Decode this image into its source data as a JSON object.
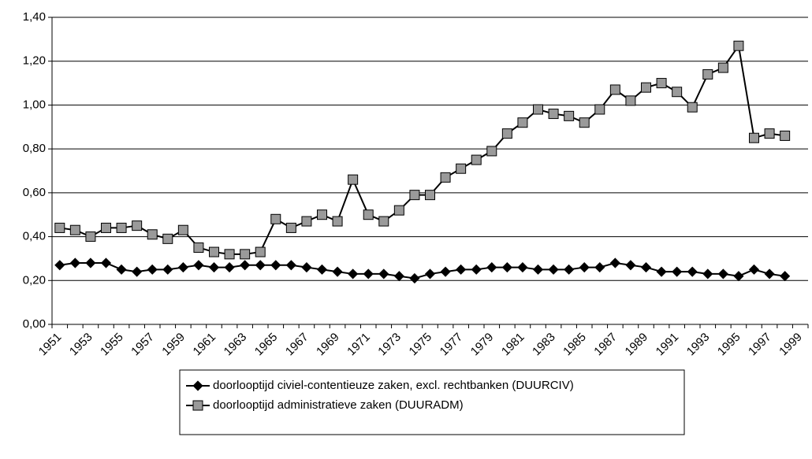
{
  "chart_data": {
    "type": "line",
    "categories": [
      "1951",
      null,
      "1953",
      null,
      "1955",
      null,
      "1957",
      null,
      "1959",
      null,
      "1961",
      null,
      "1963",
      null,
      "1965",
      null,
      "1967",
      null,
      "1969",
      null,
      "1971",
      null,
      "1973",
      null,
      "1975",
      null,
      "1977",
      null,
      "1979",
      null,
      "1981",
      null,
      "1983",
      null,
      "1985",
      null,
      "1987",
      null,
      "1989",
      null,
      "1991",
      null,
      "1993",
      null,
      "1995",
      null,
      "1997",
      null,
      "1999"
    ],
    "series": [
      {
        "name": "doorlooptijd civiel-contentieuze zaken, excl. rechtbanken (DUURCIV)",
        "color": "#000000",
        "marker": "diamond",
        "values": [
          0.27,
          0.28,
          0.28,
          0.28,
          0.25,
          0.24,
          0.25,
          0.25,
          0.26,
          0.27,
          0.26,
          0.26,
          0.27,
          0.27,
          0.27,
          0.27,
          0.26,
          0.25,
          0.24,
          0.23,
          0.23,
          0.23,
          0.22,
          0.21,
          0.23,
          0.24,
          0.25,
          0.25,
          0.26,
          0.26,
          0.26,
          0.25,
          0.25,
          0.25,
          0.26,
          0.26,
          0.28,
          0.27,
          0.26,
          0.24,
          0.24,
          0.24,
          0.23,
          0.23,
          0.22,
          0.25,
          0.23,
          0.22,
          null
        ]
      },
      {
        "name": "doorlooptijd administratieve zaken (DUURADM)",
        "color": "#9a9a9a",
        "marker": "square",
        "values": [
          0.44,
          0.43,
          0.4,
          0.44,
          0.44,
          0.45,
          0.41,
          0.39,
          0.43,
          0.35,
          0.33,
          0.32,
          0.32,
          0.33,
          0.48,
          0.44,
          0.47,
          0.5,
          0.47,
          0.66,
          0.5,
          0.47,
          0.52,
          0.59,
          0.59,
          0.67,
          0.71,
          0.75,
          0.79,
          0.87,
          0.92,
          0.98,
          0.96,
          0.95,
          0.92,
          0.98,
          1.07,
          1.02,
          1.08,
          1.1,
          1.06,
          0.99,
          1.14,
          1.17,
          1.27,
          0.85,
          0.87,
          0.86,
          null
        ]
      }
    ],
    "ylim": [
      0,
      1.4
    ],
    "yticks": [
      {
        "value": 0,
        "label": "0,00"
      },
      {
        "value": 0.2,
        "label": "0,20"
      },
      {
        "value": 0.4,
        "label": "0,40"
      },
      {
        "value": 0.6,
        "label": "0,60"
      },
      {
        "value": 0.8,
        "label": "0,80"
      },
      {
        "value": 1.0,
        "label": "1,00"
      },
      {
        "value": 1.2,
        "label": "1,20"
      },
      {
        "value": 1.4,
        "label": "1,40"
      }
    ],
    "grid": true,
    "legend": "bottom"
  }
}
